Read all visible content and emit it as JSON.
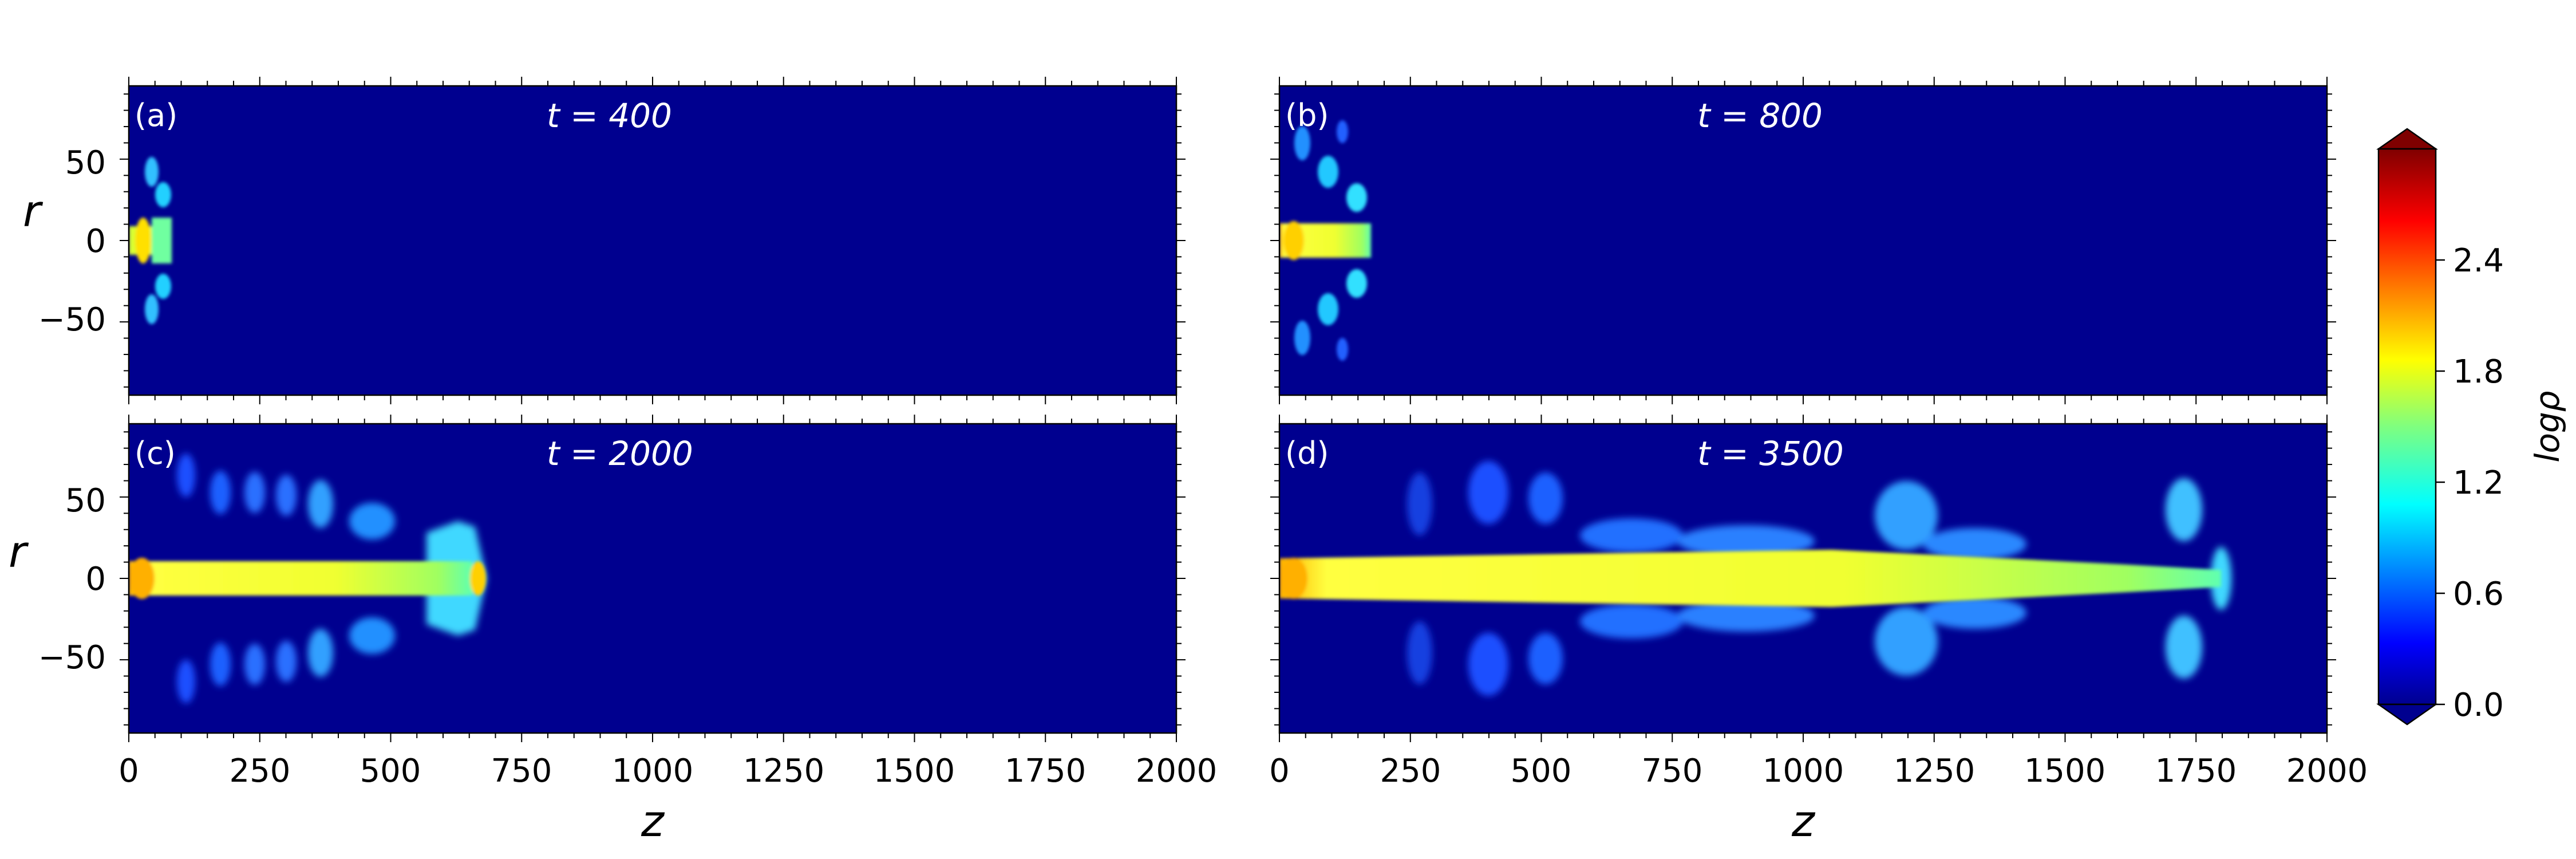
{
  "figure": {
    "colorbar": {
      "label": "logρ",
      "ticks": [
        "0.0",
        "0.6",
        "1.2",
        "1.8",
        "2.4"
      ],
      "range": [
        0.0,
        3.0
      ],
      "colormap": "jet",
      "extend": "both"
    }
  },
  "chart_data": [
    {
      "type": "heatmap",
      "panel_label": "(a)",
      "title": "t = 400",
      "time": 400,
      "xlabel": "",
      "ylabel": "r",
      "xlim": [
        0,
        2000
      ],
      "ylim": [
        -95,
        95
      ],
      "xticks": [],
      "yticks": [
        "50",
        "0",
        "−50"
      ],
      "jet_front_z": 80,
      "background_log_rho": 0.0,
      "beam_log_rho": 1.9
    },
    {
      "type": "heatmap",
      "panel_label": "(b)",
      "title": "t = 800",
      "time": 800,
      "xlabel": "",
      "ylabel": "",
      "xlim": [
        0,
        2000
      ],
      "ylim": [
        -95,
        95
      ],
      "xticks": [],
      "yticks": [],
      "jet_front_z": 165,
      "background_log_rho": 0.0,
      "beam_log_rho": 1.9
    },
    {
      "type": "heatmap",
      "panel_label": "(c)",
      "title": "t = 2000",
      "time": 2000,
      "xlabel": "z",
      "ylabel": "r",
      "xlim": [
        0,
        2000
      ],
      "ylim": [
        -95,
        95
      ],
      "xticks": [
        "0",
        "250",
        "500",
        "750",
        "1000",
        "1250",
        "1500",
        "1750",
        "2000"
      ],
      "yticks": [
        "50",
        "0",
        "−50"
      ],
      "jet_front_z": 650,
      "background_log_rho": 0.0,
      "beam_log_rho": 1.9
    },
    {
      "type": "heatmap",
      "panel_label": "(d)",
      "title": "t = 3500",
      "time": 3500,
      "xlabel": "z",
      "ylabel": "",
      "xlim": [
        0,
        2000
      ],
      "ylim": [
        -95,
        95
      ],
      "xticks": [
        "0",
        "250",
        "500",
        "750",
        "1000",
        "1250",
        "1500",
        "1750",
        "2000"
      ],
      "yticks": [],
      "jet_front_z": 1840,
      "background_log_rho": 0.0,
      "beam_log_rho": 1.9
    }
  ]
}
